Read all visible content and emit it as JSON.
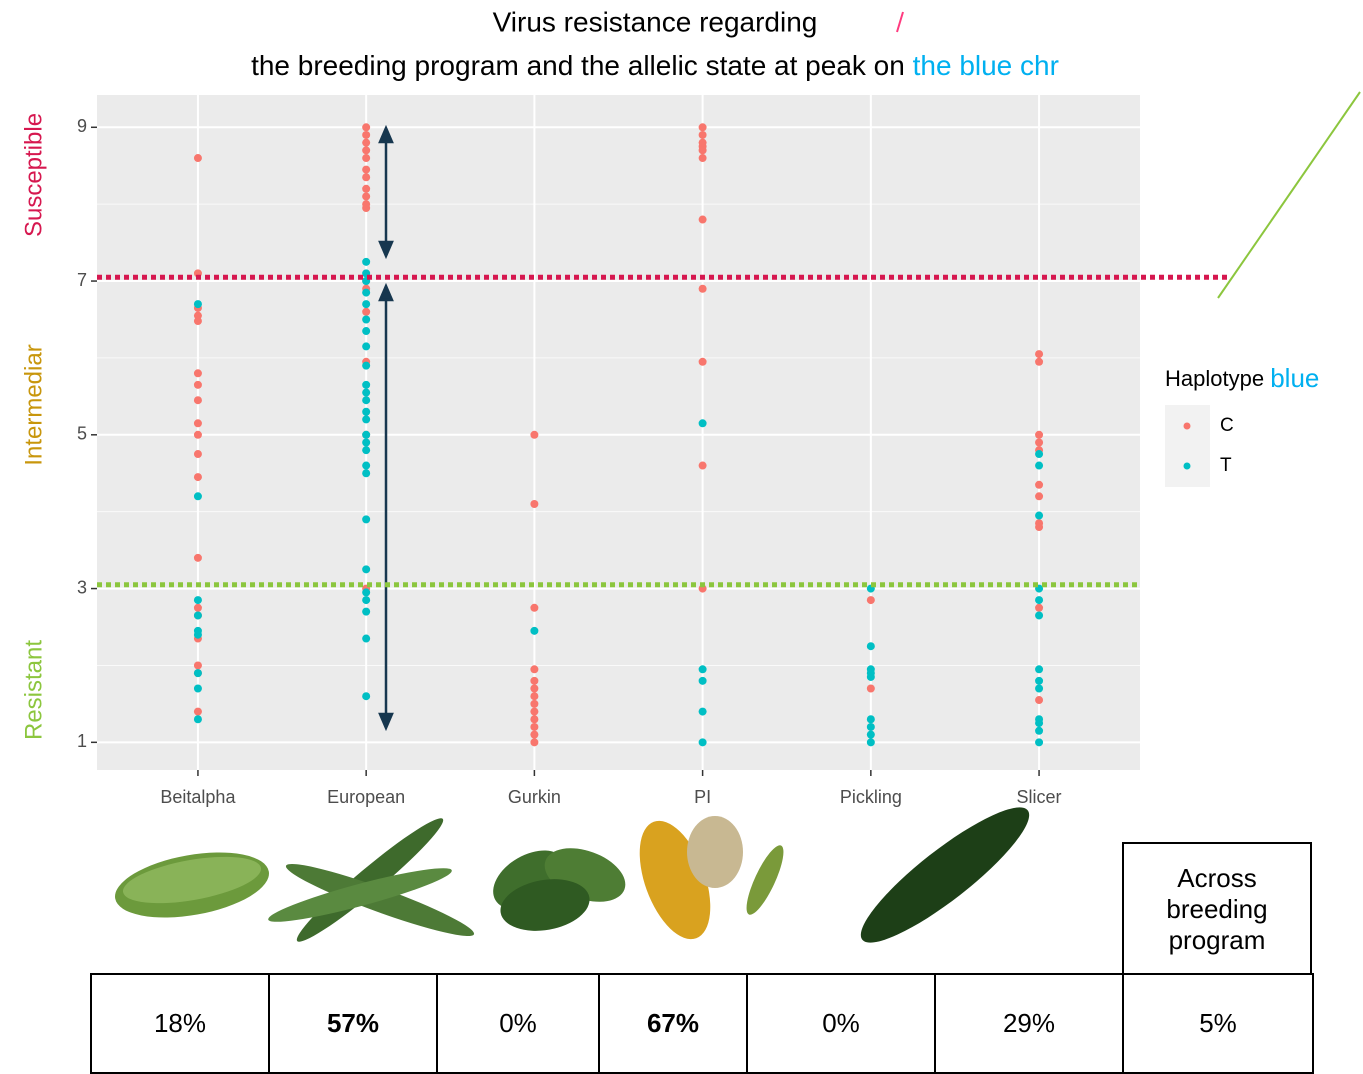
{
  "chart_data": {
    "type": "strip",
    "title": "Virus resistance regarding",
    "subtitle": "the breeding program and the allelic state at peak on",
    "subtitle_highlight": "the blue chr",
    "highlight_color": "#00b0f0",
    "categories": [
      "Beitalpha",
      "European",
      "Gurkin",
      "PI",
      "Pickling",
      "Slicer"
    ],
    "ylim": [
      0.64,
      9.42
    ],
    "yticks": [
      1,
      3,
      5,
      7,
      9
    ],
    "minor_yticks": [
      2,
      4,
      6,
      8
    ],
    "grid": true,
    "y_zones": [
      {
        "label": "Susceptible",
        "color": "#d6174f"
      },
      {
        "label": "Intermediar",
        "color": "#c8960c"
      },
      {
        "label": "Resistant",
        "color": "#8cc63e"
      }
    ],
    "hlines": [
      {
        "value": 7.05,
        "color": "#d6174f",
        "full_width": true
      },
      {
        "value": 3.05,
        "color": "#8cc63e",
        "full_width": false
      }
    ],
    "legend": {
      "title": "Haplotype",
      "title_highlight": "blue",
      "position": "right"
    },
    "series": [
      {
        "name": "C",
        "color": "#f8766d",
        "x": [
          "Beitalpha",
          "Beitalpha",
          "Beitalpha",
          "Beitalpha",
          "Beitalpha",
          "Beitalpha",
          "Beitalpha",
          "Beitalpha",
          "Beitalpha",
          "Beitalpha",
          "Beitalpha",
          "Beitalpha",
          "Beitalpha",
          "Beitalpha",
          "Beitalpha",
          "Beitalpha",
          "Beitalpha",
          "Beitalpha",
          "Beitalpha",
          "European",
          "European",
          "European",
          "European",
          "European",
          "European",
          "European",
          "European",
          "European",
          "European",
          "European",
          "European",
          "European",
          "European",
          "European",
          "European",
          "European",
          "Gurkin",
          "Gurkin",
          "Gurkin",
          "Gurkin",
          "Gurkin",
          "Gurkin",
          "Gurkin",
          "Gurkin",
          "Gurkin",
          "Gurkin",
          "Gurkin",
          "Gurkin",
          "Gurkin",
          "PI",
          "PI",
          "PI",
          "PI",
          "PI",
          "PI",
          "PI",
          "PI",
          "PI",
          "PI",
          "PI",
          "Pickling",
          "Pickling",
          "Slicer",
          "Slicer",
          "Slicer",
          "Slicer",
          "Slicer",
          "Slicer",
          "Slicer",
          "Slicer",
          "Slicer",
          "Slicer",
          "Slicer"
        ],
        "values": [
          8.6,
          7.1,
          6.65,
          6.55,
          6.48,
          5.8,
          5.65,
          5.45,
          5.15,
          5.0,
          4.75,
          4.45,
          3.4,
          2.75,
          2.65,
          2.35,
          2.0,
          1.9,
          1.4,
          9.0,
          8.9,
          8.8,
          8.7,
          8.6,
          8.45,
          8.35,
          8.2,
          8.1,
          8.0,
          7.95,
          7.0,
          6.9,
          6.6,
          5.95,
          5.0,
          3.0,
          5.0,
          4.1,
          2.75,
          1.95,
          1.8,
          1.7,
          1.6,
          1.5,
          1.4,
          1.3,
          1.2,
          1.1,
          1.0,
          9.0,
          8.9,
          8.8,
          8.75,
          8.7,
          8.6,
          7.8,
          6.9,
          5.95,
          4.6,
          3.0,
          2.85,
          1.7,
          6.05,
          5.95,
          5.0,
          4.9,
          4.8,
          4.35,
          4.2,
          3.85,
          3.8,
          2.75,
          1.55
        ]
      },
      {
        "name": "T",
        "color": "#00bfc4",
        "x": [
          "Beitalpha",
          "Beitalpha",
          "Beitalpha",
          "Beitalpha",
          "Beitalpha",
          "Beitalpha",
          "Beitalpha",
          "Beitalpha",
          "Beitalpha",
          "European",
          "European",
          "European",
          "European",
          "European",
          "European",
          "European",
          "European",
          "European",
          "European",
          "European",
          "European",
          "European",
          "European",
          "European",
          "European",
          "European",
          "European",
          "European",
          "European",
          "European",
          "European",
          "European",
          "European",
          "European",
          "European",
          "Gurkin",
          "PI",
          "PI",
          "PI",
          "PI",
          "PI",
          "Pickling",
          "Pickling",
          "Pickling",
          "Pickling",
          "Pickling",
          "Pickling",
          "Pickling",
          "Pickling",
          "Pickling",
          "Slicer",
          "Slicer",
          "Slicer",
          "Slicer",
          "Slicer",
          "Slicer",
          "Slicer",
          "Slicer",
          "Slicer",
          "Slicer",
          "Slicer",
          "Slicer",
          "Slicer"
        ],
        "values": [
          6.7,
          4.2,
          2.85,
          2.65,
          2.45,
          2.4,
          1.9,
          1.7,
          1.3,
          7.25,
          7.1,
          7.0,
          6.85,
          6.7,
          6.5,
          6.35,
          6.15,
          5.9,
          5.65,
          5.55,
          5.45,
          5.3,
          5.2,
          5.0,
          4.9,
          4.8,
          4.6,
          4.5,
          3.9,
          3.25,
          2.95,
          2.85,
          2.7,
          2.35,
          1.6,
          2.45,
          5.15,
          1.95,
          1.8,
          1.4,
          1.0,
          3.0,
          2.25,
          1.95,
          1.9,
          1.85,
          1.3,
          1.2,
          1.1,
          1.0,
          4.75,
          4.6,
          3.95,
          3.0,
          2.85,
          2.65,
          1.95,
          1.8,
          1.7,
          1.3,
          1.25,
          1.15,
          1.0
        ]
      }
    ]
  },
  "table": {
    "header": "Across breeding program",
    "cells": [
      {
        "text": "18%",
        "bold": false
      },
      {
        "text": "57%",
        "bold": true
      },
      {
        "text": "0%",
        "bold": false
      },
      {
        "text": "67%",
        "bold": true
      },
      {
        "text": "0%",
        "bold": false
      },
      {
        "text": "29%",
        "bold": false
      },
      {
        "text": "5%",
        "bold": false
      }
    ]
  }
}
